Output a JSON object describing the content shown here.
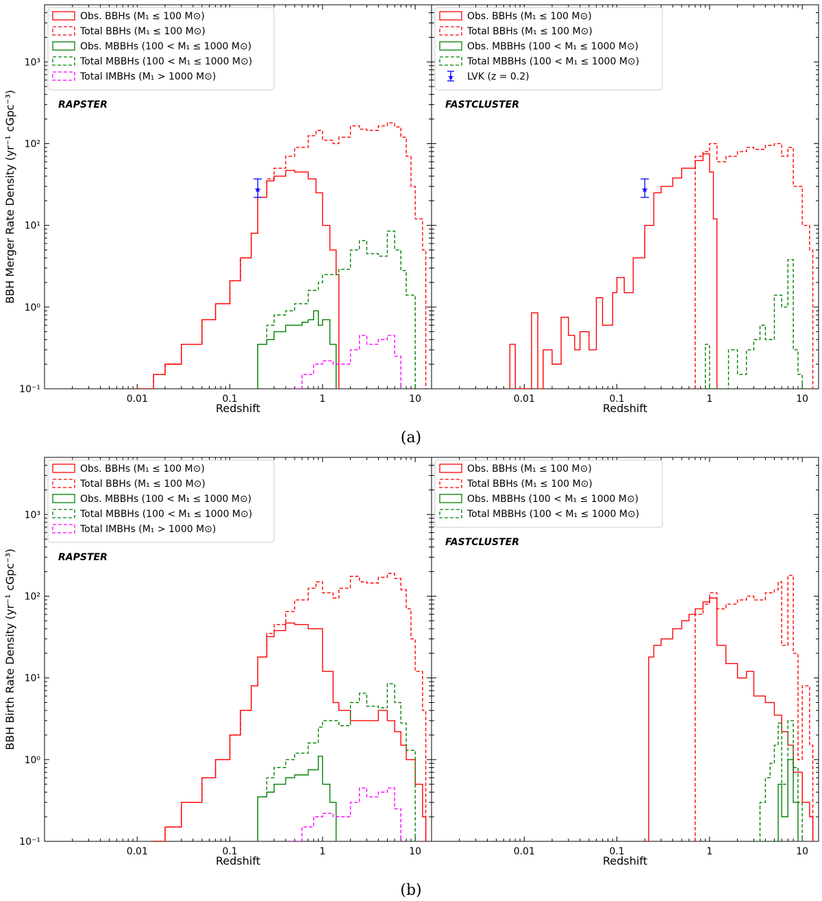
{
  "figure": {
    "caption_a": "(a)",
    "caption_b": "(b)"
  },
  "colors": {
    "obs_bbh": "#ff0000",
    "total_bbh": "#ff0000",
    "obs_mbbh": "#008000",
    "total_mbbh": "#008000",
    "total_imbh": "#ff00ff",
    "lvk": "#0000ff"
  },
  "chart_data": [
    {
      "id": "a-rapster",
      "type": "line",
      "drawstyle": "steps",
      "panel_label": "RAPSTER",
      "xlabel": "Redshift",
      "ylabel": "BBH Merger Rate Density (yr⁻¹ cGpc⁻³)",
      "xscale": "log",
      "yscale": "log",
      "xlim": [
        0.001,
        15
      ],
      "ylim": [
        0.1,
        5000
      ],
      "xticks": [
        "0.01",
        "0.1",
        "1",
        "10"
      ],
      "yticks": [
        "10⁻¹",
        "10⁰",
        "10¹",
        "10²",
        "10³"
      ],
      "legend_position": "top-left",
      "legend": [
        "Obs. BBHs (M₁ ≤ 100 M⊙)",
        "Total BBHs (M₁ ≤ 100 M⊙)",
        "Obs. MBBHs (100 < M₁ ≤ 1000 M⊙)",
        "Total MBBHs (100 < M₁ ≤ 1000 M⊙)",
        "Total IMBHs (M₁ > 1000 M⊙)"
      ],
      "series": [
        {
          "name": "Obs. BBHs (M₁ ≤ 100 M⊙)",
          "style": "solid",
          "color": "#ff0000",
          "x": [
            0.01,
            0.015,
            0.02,
            0.03,
            0.05,
            0.07,
            0.1,
            0.13,
            0.17,
            0.2,
            0.25,
            0.3,
            0.4,
            0.5,
            0.7,
            0.85,
            1.0,
            1.2,
            1.4,
            1.5
          ],
          "y": [
            0.1,
            0.15,
            0.2,
            0.35,
            0.7,
            1.1,
            2.1,
            4,
            8,
            22,
            35,
            40,
            47,
            45,
            37,
            25,
            10,
            5,
            2.5,
            0.1
          ]
        },
        {
          "name": "Total BBHs (M₁ ≤ 100 M⊙)",
          "style": "dashed",
          "color": "#ff0000",
          "x": [
            0.01,
            0.015,
            0.02,
            0.03,
            0.05,
            0.07,
            0.1,
            0.13,
            0.17,
            0.2,
            0.25,
            0.3,
            0.4,
            0.5,
            0.7,
            0.85,
            1.0,
            1.3,
            1.5,
            2.0,
            2.5,
            3.0,
            4.0,
            5.0,
            6.0,
            7.0,
            8.0,
            9.0,
            10.0,
            12.0,
            13.0
          ],
          "y": [
            0.1,
            0.15,
            0.2,
            0.35,
            0.7,
            1.1,
            2.1,
            4,
            8,
            22,
            37,
            50,
            70,
            90,
            125,
            145,
            110,
            100,
            120,
            165,
            150,
            145,
            165,
            180,
            160,
            120,
            70,
            30,
            12,
            5,
            0.1
          ]
        },
        {
          "name": "Obs. MBBHs (100 < M₁ ≤ 1000 M⊙)",
          "style": "solid",
          "color": "#008000",
          "x": [
            0.2,
            0.25,
            0.3,
            0.4,
            0.5,
            0.6,
            0.7,
            0.8,
            0.9,
            1.0,
            1.2,
            1.4
          ],
          "y": [
            0.35,
            0.4,
            0.5,
            0.6,
            0.6,
            0.65,
            0.7,
            0.9,
            0.6,
            0.7,
            0.35,
            0.1
          ]
        },
        {
          "name": "Total MBBHs (100 < M₁ ≤ 1000 M⊙)",
          "style": "dashed",
          "color": "#008000",
          "x": [
            0.2,
            0.25,
            0.3,
            0.4,
            0.5,
            0.7,
            0.9,
            1.0,
            1.5,
            2.0,
            2.5,
            3.0,
            4.0,
            5.0,
            6.0,
            7.0,
            8.0,
            10.0
          ],
          "y": [
            0.35,
            0.6,
            0.8,
            0.9,
            1.1,
            1.6,
            2.0,
            2.5,
            2.9,
            5.0,
            6.5,
            4.5,
            4.2,
            8.5,
            5.0,
            2.8,
            1.4,
            0.1
          ]
        },
        {
          "name": "Total IMBHs (M₁ > 1000 M⊙)",
          "style": "dashed",
          "color": "#ff00ff",
          "x": [
            0.45,
            0.6,
            0.8,
            1.0,
            1.3,
            1.6,
            2.0,
            2.5,
            3.0,
            4.0,
            5.0,
            6.0,
            7.0
          ],
          "y": [
            0.1,
            0.15,
            0.2,
            0.22,
            0.2,
            0.2,
            0.3,
            0.45,
            0.35,
            0.4,
            0.45,
            0.25,
            0.1
          ]
        }
      ]
    },
    {
      "id": "a-fastcluster",
      "type": "line",
      "drawstyle": "steps",
      "panel_label": "FASTCLUSTER",
      "xlabel": "Redshift",
      "ylabel": "",
      "xscale": "log",
      "yscale": "log",
      "xlim": [
        0.001,
        15
      ],
      "ylim": [
        0.1,
        5000
      ],
      "xticks": [
        "0.01",
        "0.1",
        "1",
        "10"
      ],
      "legend_position": "top-left",
      "legend": [
        "Obs. BBHs (M₁ ≤ 100 M⊙)",
        "Total BBHs (M₁ ≤ 100 M⊙)",
        "Obs. MBBHs (100 < M₁ ≤ 1000 M⊙)",
        "Total MBBHs (100 < M₁ ≤ 1000 M⊙)",
        "LVK (z = 0.2)"
      ],
      "series": [
        {
          "name": "Obs. BBHs (M₁ ≤ 100 M⊙)",
          "style": "solid",
          "color": "#ff0000",
          "x": [
            0.007,
            0.008,
            0.012,
            0.014,
            0.016,
            0.02,
            0.025,
            0.03,
            0.035,
            0.04,
            0.05,
            0.06,
            0.07,
            0.09,
            0.1,
            0.12,
            0.15,
            0.2,
            0.25,
            0.3,
            0.4,
            0.5,
            0.7,
            0.85,
            1.0,
            1.1,
            1.2
          ],
          "y": [
            0.35,
            0.1,
            0.85,
            0.1,
            0.3,
            0.2,
            0.75,
            0.45,
            0.3,
            0.5,
            0.3,
            1.3,
            0.6,
            1.5,
            2.3,
            1.5,
            4,
            10,
            25,
            30,
            38,
            50,
            62,
            75,
            45,
            12,
            0.1
          ]
        },
        {
          "name": "Total BBHs (M₁ ≤ 100 M⊙)",
          "style": "dashed",
          "color": "#ff0000",
          "x": [
            0.7,
            0.85,
            1.0,
            1.2,
            1.5,
            2.0,
            2.5,
            3.0,
            4.0,
            5.0,
            6.0,
            7.0,
            8.0,
            10.0,
            12.0,
            13.0
          ],
          "y": [
            70,
            80,
            100,
            60,
            70,
            80,
            90,
            85,
            95,
            100,
            70,
            90,
            30,
            10,
            5,
            0.1
          ]
        },
        {
          "name": "Obs. MBBHs (100 < M₁ ≤ 1000 M⊙)",
          "style": "solid",
          "color": "#008000",
          "x": [],
          "y": []
        },
        {
          "name": "Total MBBHs (100 < M₁ ≤ 1000 M⊙)",
          "style": "dashed",
          "color": "#008000",
          "x": [
            0.9,
            1.0,
            1.6,
            2.0,
            2.5,
            3.0,
            3.5,
            4.0,
            5.0,
            6.0,
            7.0,
            8.0,
            9.0,
            10.0
          ],
          "y": [
            0.35,
            0.1,
            0.3,
            0.15,
            0.3,
            0.4,
            0.6,
            0.4,
            1.4,
            1.0,
            3.8,
            0.3,
            0.15,
            0.1
          ]
        }
      ],
      "error_points": [
        {
          "name": "LVK (z = 0.2)",
          "x": 0.2,
          "y": 28,
          "ylow": 22,
          "yhigh": 37
        }
      ]
    },
    {
      "id": "b-rapster",
      "type": "line",
      "drawstyle": "steps",
      "panel_label": "RAPSTER",
      "xlabel": "Redshift",
      "ylabel": "BBH Birth Rate Density (yr⁻¹ cGpc⁻³)",
      "xscale": "log",
      "yscale": "log",
      "xlim": [
        0.001,
        15
      ],
      "ylim": [
        0.1,
        5000
      ],
      "xticks": [
        "0.01",
        "0.1",
        "1",
        "10"
      ],
      "yticks": [
        "10⁻¹",
        "10⁰",
        "10¹",
        "10²",
        "10³"
      ],
      "legend_position": "top-left",
      "legend": [
        "Obs. BBHs (M₁ ≤ 100 M⊙)",
        "Total BBHs (M₁ ≤ 100 M⊙)",
        "Obs. MBBHs (100 < M₁ ≤ 1000 M⊙)",
        "Total MBBHs (100 < M₁ ≤ 1000 M⊙)",
        "Total IMBHs (M₁ > 1000 M⊙)"
      ],
      "series": [
        {
          "name": "Obs. BBHs (M₁ ≤ 100 M⊙)",
          "style": "solid",
          "color": "#ff0000",
          "x": [
            0.015,
            0.02,
            0.03,
            0.05,
            0.07,
            0.1,
            0.13,
            0.17,
            0.2,
            0.25,
            0.3,
            0.4,
            0.5,
            0.7,
            1.0,
            1.3,
            1.5,
            2.0,
            3.0,
            4.0,
            5.0,
            6.0,
            7.0,
            8.0,
            10.0,
            12.0,
            13.0
          ],
          "y": [
            0.1,
            0.15,
            0.3,
            0.6,
            1.0,
            2.0,
            4,
            8,
            18,
            32,
            38,
            47,
            45,
            40,
            12,
            5,
            4,
            3.0,
            3.0,
            4.0,
            3.0,
            2.2,
            1.5,
            1.0,
            0.5,
            0.2,
            0.1
          ]
        },
        {
          "name": "Total BBHs (M₁ ≤ 100 M⊙)",
          "style": "dashed",
          "color": "#ff0000",
          "x": [
            0.015,
            0.02,
            0.03,
            0.05,
            0.07,
            0.1,
            0.13,
            0.17,
            0.2,
            0.25,
            0.3,
            0.4,
            0.5,
            0.7,
            0.85,
            1.0,
            1.3,
            1.5,
            2.0,
            2.5,
            3.0,
            4.0,
            5.0,
            6.0,
            7.0,
            8.0,
            9.0,
            10.0,
            12.0,
            13.0
          ],
          "y": [
            0.1,
            0.15,
            0.3,
            0.6,
            1.0,
            2.0,
            4,
            8,
            18,
            35,
            45,
            65,
            90,
            125,
            150,
            110,
            95,
            125,
            175,
            150,
            145,
            170,
            190,
            165,
            120,
            70,
            30,
            12,
            4,
            0.1
          ]
        },
        {
          "name": "Obs. MBBHs (100 < M₁ ≤ 1000 M⊙)",
          "style": "solid",
          "color": "#008000",
          "x": [
            0.2,
            0.25,
            0.3,
            0.4,
            0.5,
            0.7,
            0.9,
            1.0,
            1.2,
            1.4
          ],
          "y": [
            0.35,
            0.4,
            0.5,
            0.6,
            0.65,
            0.75,
            1.1,
            0.5,
            0.3,
            0.1
          ]
        },
        {
          "name": "Total MBBHs (100 < M₁ ≤ 1000 M⊙)",
          "style": "dashed",
          "color": "#008000",
          "x": [
            0.2,
            0.25,
            0.3,
            0.4,
            0.5,
            0.7,
            0.9,
            1.0,
            1.5,
            2.0,
            2.5,
            3.0,
            4.0,
            5.0,
            6.0,
            7.0,
            8.0,
            10.0
          ],
          "y": [
            0.35,
            0.6,
            0.8,
            1.0,
            1.2,
            1.6,
            2.5,
            3.0,
            2.6,
            5.0,
            6.5,
            4.5,
            4.3,
            8.5,
            5.0,
            2.8,
            1.3,
            0.1
          ]
        },
        {
          "name": "Total IMBHs (M₁ > 1000 M⊙)",
          "style": "dashed",
          "color": "#ff00ff",
          "x": [
            0.45,
            0.6,
            0.8,
            1.0,
            1.3,
            1.6,
            2.0,
            2.5,
            3.0,
            4.0,
            5.0,
            6.0,
            7.0
          ],
          "y": [
            0.1,
            0.15,
            0.2,
            0.22,
            0.2,
            0.2,
            0.3,
            0.45,
            0.35,
            0.4,
            0.45,
            0.25,
            0.1
          ]
        }
      ]
    },
    {
      "id": "b-fastcluster",
      "type": "line",
      "drawstyle": "steps",
      "panel_label": "FASTCLUSTER",
      "xlabel": "Redshift",
      "ylabel": "",
      "xscale": "log",
      "yscale": "log",
      "xlim": [
        0.001,
        15
      ],
      "ylim": [
        0.1,
        5000
      ],
      "xticks": [
        "0.01",
        "0.1",
        "1",
        "10"
      ],
      "legend_position": "top-left",
      "legend": [
        "Obs. BBHs (M₁ ≤ 100 M⊙)",
        "Total BBHs (M₁ ≤ 100 M⊙)",
        "Obs. MBBHs (100 < M₁ ≤ 1000 M⊙)",
        "Total MBBHs (100 < M₁ ≤ 1000 M⊙)"
      ],
      "series": [
        {
          "name": "Obs. BBHs (M₁ ≤ 100 M⊙)",
          "style": "solid",
          "color": "#ff0000",
          "x": [
            0.2,
            0.22,
            0.25,
            0.3,
            0.4,
            0.5,
            0.6,
            0.7,
            0.85,
            1.0,
            1.2,
            1.5,
            2.0,
            2.5,
            3.0,
            4.0,
            5.0,
            6.0,
            7.0,
            8.0,
            10.0,
            12.0,
            13.0
          ],
          "y": [
            0.1,
            18,
            25,
            30,
            40,
            50,
            60,
            70,
            85,
            95,
            25,
            15,
            10,
            12,
            6,
            5,
            3.5,
            2.2,
            1.5,
            0.7,
            0.3,
            0.2,
            0.1
          ]
        },
        {
          "name": "Total BBHs (M₁ ≤ 100 M⊙)",
          "style": "dashed",
          "color": "#ff0000",
          "x": [
            0.7,
            0.85,
            1.0,
            1.2,
            1.5,
            2.0,
            2.5,
            3.0,
            4.0,
            5.0,
            5.5,
            6.0,
            7.0,
            8.0,
            9.0,
            10.0,
            12.0,
            13.0
          ],
          "y": [
            60,
            80,
            110,
            70,
            80,
            90,
            100,
            90,
            110,
            120,
            150,
            25,
            180,
            20,
            1.0,
            8,
            1.5,
            0.1
          ]
        },
        {
          "name": "Obs. MBBHs (100 < M₁ ≤ 1000 M⊙)",
          "style": "solid",
          "color": "#008000",
          "x": [
            5.0,
            5.5,
            6.0,
            7.0,
            8.0,
            9.0
          ],
          "y": [
            0.1,
            0.5,
            0.2,
            1.0,
            0.3,
            0.1
          ]
        },
        {
          "name": "Total MBBHs (100 < M₁ ≤ 1000 M⊙)",
          "style": "dashed",
          "color": "#008000",
          "x": [
            3.0,
            3.5,
            4.0,
            4.5,
            5.0,
            5.5,
            6.0,
            7.0,
            8.0,
            9.0,
            10.0
          ],
          "y": [
            0.1,
            0.3,
            0.6,
            0.9,
            1.5,
            2.8,
            0.5,
            3.0,
            0.8,
            0.3,
            0.1
          ]
        }
      ]
    }
  ]
}
